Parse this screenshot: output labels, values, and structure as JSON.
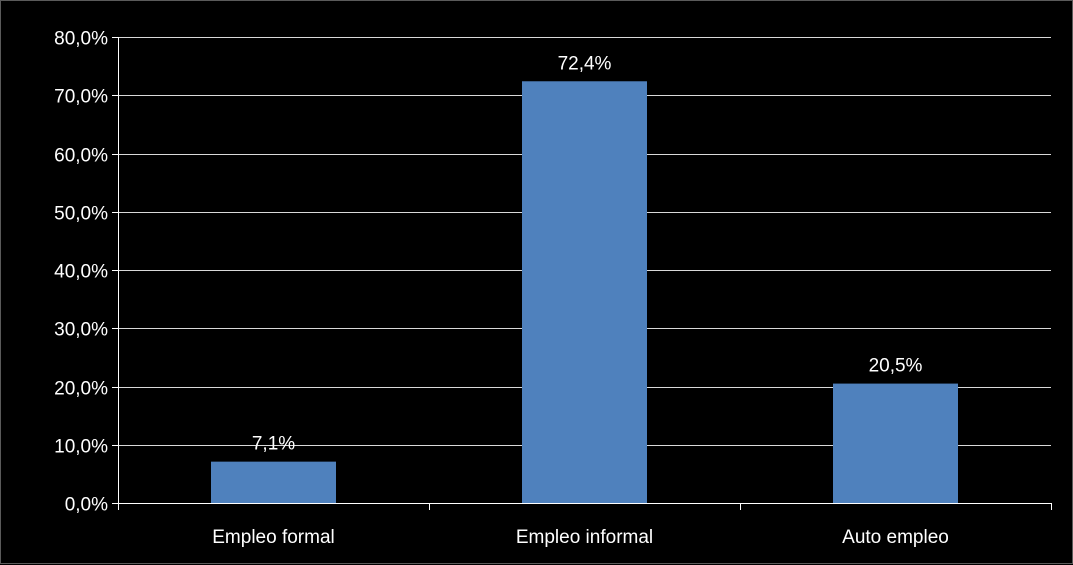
{
  "chart_data": {
    "type": "bar",
    "categories": [
      "Empleo formal",
      "Empleo informal",
      "Auto empleo"
    ],
    "values": [
      7.1,
      72.4,
      20.5
    ],
    "data_labels": [
      "7,1%",
      "72,4%",
      "20,5%"
    ],
    "title": "",
    "xlabel": "",
    "ylabel": "",
    "ylim": [
      0,
      80
    ],
    "yticks": [
      0,
      10,
      20,
      30,
      40,
      50,
      60,
      70,
      80
    ],
    "ytick_labels": [
      "0,0%",
      "10,0%",
      "20,0%",
      "30,0%",
      "40,0%",
      "50,0%",
      "60,0%",
      "70,0%",
      "80,0%"
    ],
    "grid": true,
    "legend": "none",
    "bar_color": "#4F81BD",
    "background_color": "#000000",
    "grid_color": "#ffffff",
    "text_color": "#ffffff"
  }
}
